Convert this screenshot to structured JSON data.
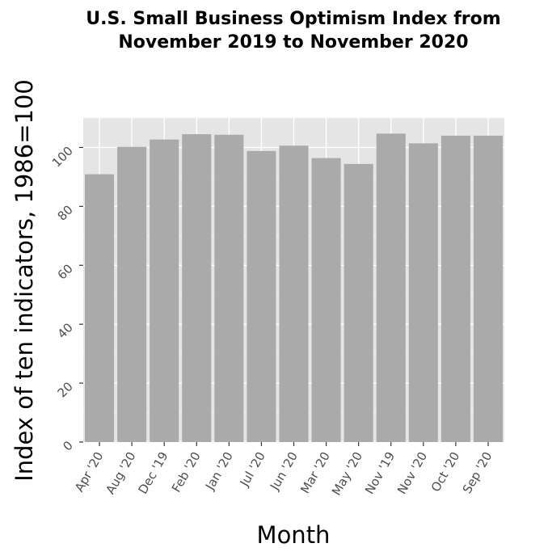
{
  "chart_data": {
    "type": "bar",
    "title_lines": [
      "U.S. Small Business Optimism Index from",
      "November 2019 to November 2020"
    ],
    "xlabel": "Month",
    "ylabel": "Index of ten indicators, 1986=100",
    "categories": [
      "Apr '20",
      "Aug '20",
      "Dec '19",
      "Feb '20",
      "Jan '20",
      "Jul '20",
      "Jun '20",
      "Mar '20",
      "May '20",
      "Nov '19",
      "Nov '20",
      "Oct '20",
      "Sep '20"
    ],
    "values": [
      90.9,
      100.2,
      102.7,
      104.5,
      104.3,
      98.8,
      100.6,
      96.4,
      94.4,
      104.7,
      101.4,
      104.0,
      104.0
    ],
    "ylim": [
      0,
      110
    ],
    "yticks": [
      0,
      20,
      40,
      60,
      80,
      100
    ],
    "grid": true,
    "colors": {
      "bar": "#aaaaaa",
      "panel": "#e5e5e5",
      "grid": "#ffffff"
    }
  }
}
